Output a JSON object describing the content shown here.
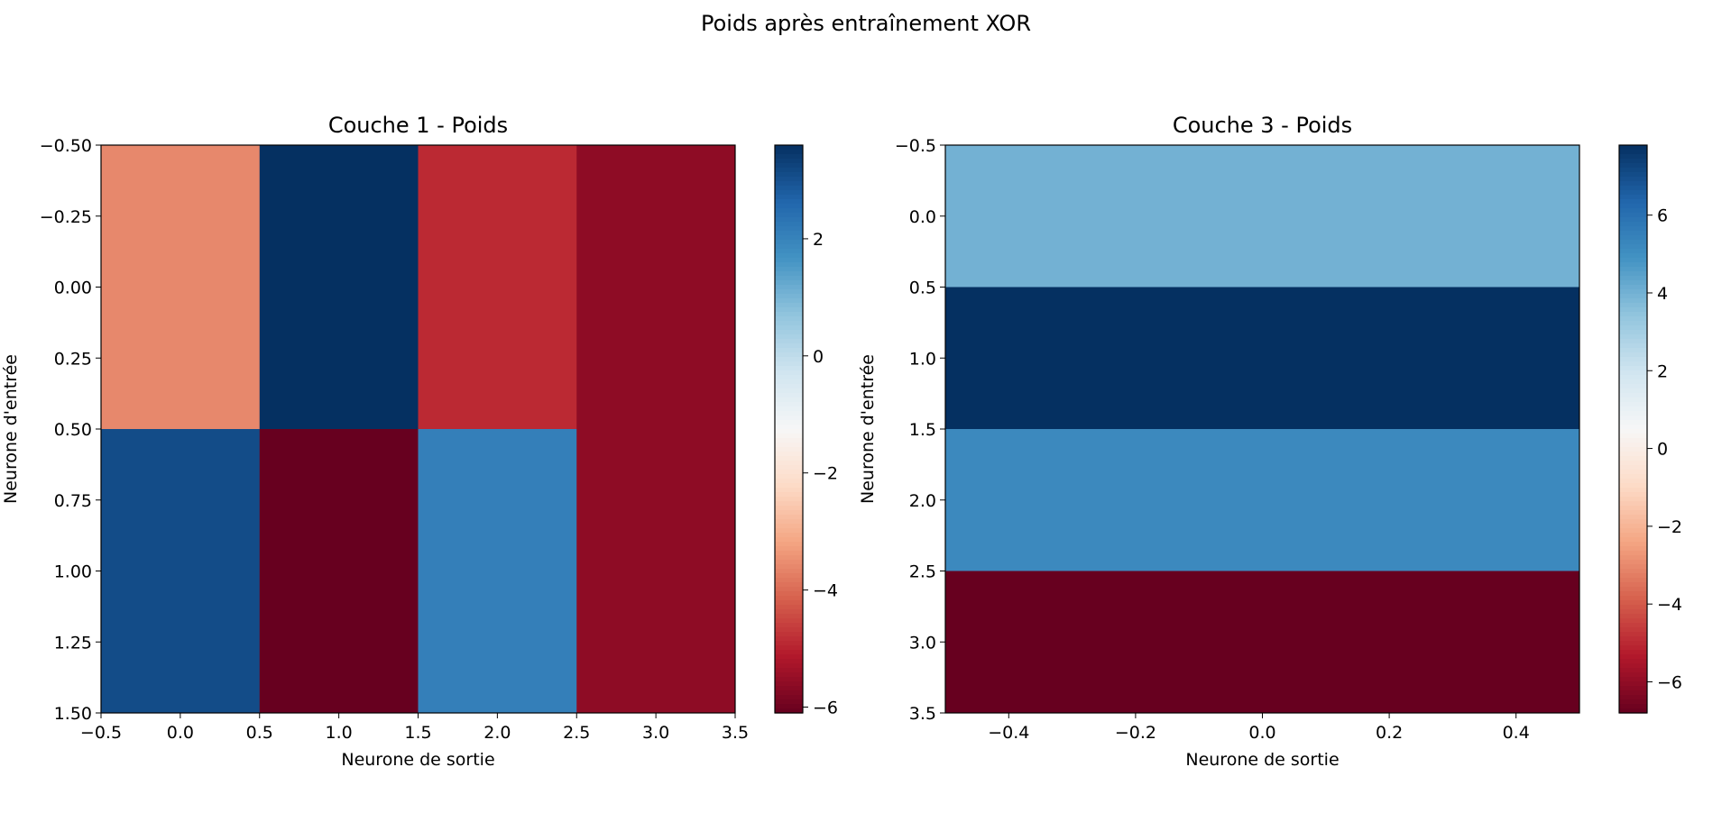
{
  "figure": {
    "suptitle": "Poids après entraînement XOR"
  },
  "chart_data": [
    {
      "type": "heatmap",
      "title": "Couche 1 - Poids",
      "xlabel": "Neurone de sortie",
      "ylabel": "Neurone d'entrée",
      "colormap": "RdBu",
      "xlim": [
        -0.5,
        3.5
      ],
      "ylim": [
        1.5,
        -0.5
      ],
      "xticks": [
        -0.5,
        0.0,
        0.5,
        1.0,
        1.5,
        2.0,
        2.5,
        3.0,
        3.5
      ],
      "xtick_labels": [
        "−0.5",
        "0.0",
        "0.5",
        "1.0",
        "1.5",
        "2.0",
        "2.5",
        "3.0",
        "3.5"
      ],
      "yticks": [
        -0.5,
        -0.25,
        0.0,
        0.25,
        0.5,
        0.75,
        1.0,
        1.25,
        1.5
      ],
      "ytick_labels": [
        "−0.50",
        "−0.25",
        "0.00",
        "0.25",
        "0.50",
        "0.75",
        "1.00",
        "1.25",
        "1.50"
      ],
      "values": [
        [
          -3.6,
          3.6,
          -4.9,
          -5.6
        ],
        [
          3.1,
          -6.1,
          2.1,
          -5.6
        ]
      ],
      "colorbar": {
        "vmin": -6.1,
        "vmax": 3.6,
        "ticks": [
          -6,
          -4,
          -2,
          0,
          2
        ],
        "tick_labels": [
          "−6",
          "−4",
          "−2",
          "0",
          "2"
        ]
      }
    },
    {
      "type": "heatmap",
      "title": "Couche 3 - Poids",
      "xlabel": "Neurone de sortie",
      "ylabel": "Neurone d'entrée",
      "colormap": "RdBu",
      "xlim": [
        -0.5,
        0.5
      ],
      "ylim": [
        3.5,
        -0.5
      ],
      "xticks": [
        -0.4,
        -0.2,
        0.0,
        0.2,
        0.4
      ],
      "xtick_labels": [
        "−0.4",
        "−0.2",
        "0.0",
        "0.2",
        "0.4"
      ],
      "yticks": [
        -0.5,
        0.0,
        0.5,
        1.0,
        1.5,
        2.0,
        2.5,
        3.0,
        3.5
      ],
      "ytick_labels": [
        "−0.5",
        "0.0",
        "0.5",
        "1.0",
        "1.5",
        "2.0",
        "2.5",
        "3.0",
        "3.5"
      ],
      "values": [
        [
          4.0
        ],
        [
          7.8
        ],
        [
          5.2
        ],
        [
          -6.8
        ]
      ],
      "colorbar": {
        "vmin": -6.8,
        "vmax": 7.8,
        "ticks": [
          -6,
          -4,
          -2,
          0,
          2,
          4,
          6
        ],
        "tick_labels": [
          "−6",
          "−4",
          "−2",
          "0",
          "2",
          "4",
          "6"
        ]
      }
    }
  ]
}
